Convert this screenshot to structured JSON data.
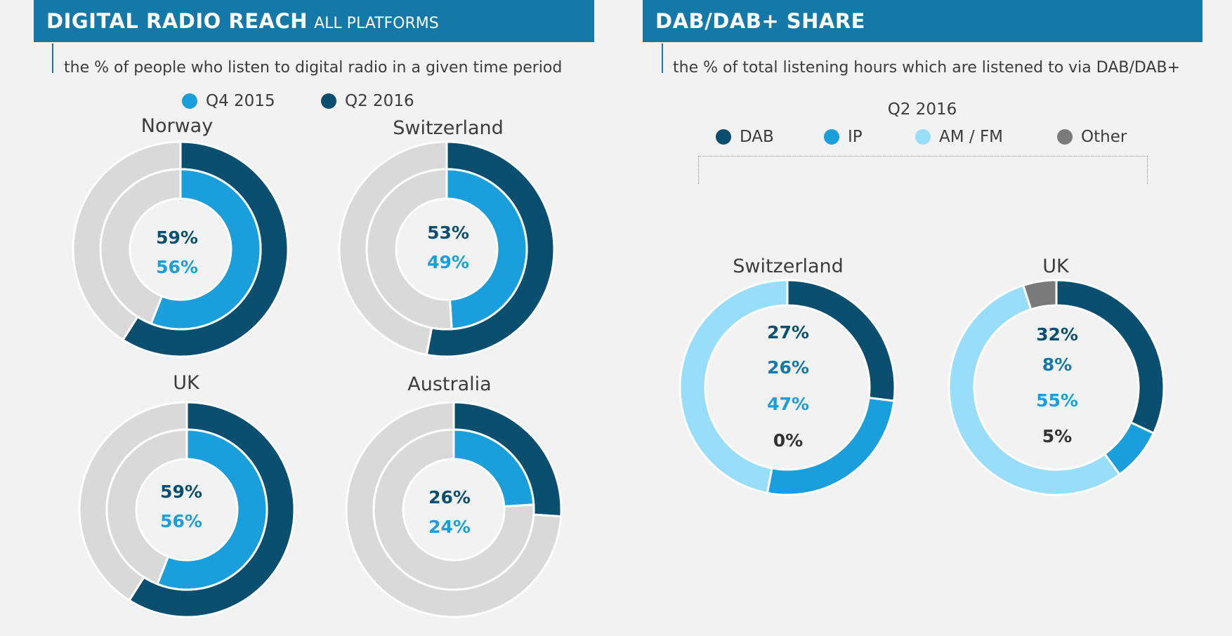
{
  "left_panel": {
    "title_strong": "DIGITAL RADIO REACH",
    "title_light": "ALL PLATFORMS",
    "subtitle": "the % of people who listen to digital radio in a given time period"
  },
  "right_panel": {
    "title_strong": "DAB/DAB+ SHARE",
    "subtitle": "the % of total listening hours which are listened to via DAB/DAB+",
    "period": "Q2 2016"
  },
  "colors": {
    "banner": "#1478a8",
    "q2_2016": "#0b4f70",
    "q4_2015": "#1b9fdc",
    "dab": "#0b4f70",
    "ip": "#1b9fdc",
    "amfm": "#98ddfa",
    "other": "#7a7a7a",
    "track": "#d9d9d9"
  },
  "chart_data": [
    {
      "type": "pie",
      "subtype": "nested-donut",
      "title": "DIGITAL RADIO REACH ALL PLATFORMS",
      "legend": [
        "Q4 2015",
        "Q2 2016"
      ],
      "legend_placement": "top",
      "groups": [
        {
          "name": "Norway",
          "q2_2016": 59,
          "q4_2015": 56,
          "label_q2": "59%",
          "label_q4": "56%"
        },
        {
          "name": "Switzerland",
          "q2_2016": 53,
          "q4_2015": 49,
          "label_q2": "53%",
          "label_q4": "49%"
        },
        {
          "name": "UK",
          "q2_2016": 59,
          "q4_2015": 56,
          "label_q2": "59%",
          "label_q4": "56%"
        },
        {
          "name": "Australia",
          "q2_2016": 26,
          "q4_2015": 24,
          "label_q2": "26%",
          "label_q4": "24%"
        }
      ]
    },
    {
      "type": "pie",
      "subtype": "donut",
      "title": "DAB/DAB+ SHARE",
      "period": "Q2 2016",
      "legend": [
        "DAB",
        "IP",
        "AM / FM",
        "Other"
      ],
      "legend_placement": "top",
      "groups": [
        {
          "name": "Switzerland",
          "values": {
            "DAB": 27,
            "IP": 26,
            "AM / FM": 47,
            "Other": 0
          },
          "labels": [
            "27%",
            "26%",
            "47%",
            "0%"
          ]
        },
        {
          "name": "UK",
          "values": {
            "DAB": 32,
            "IP": 8,
            "AM / FM": 55,
            "Other": 5
          },
          "labels": [
            "32%",
            "8%",
            "55%",
            "5%"
          ]
        }
      ]
    }
  ]
}
